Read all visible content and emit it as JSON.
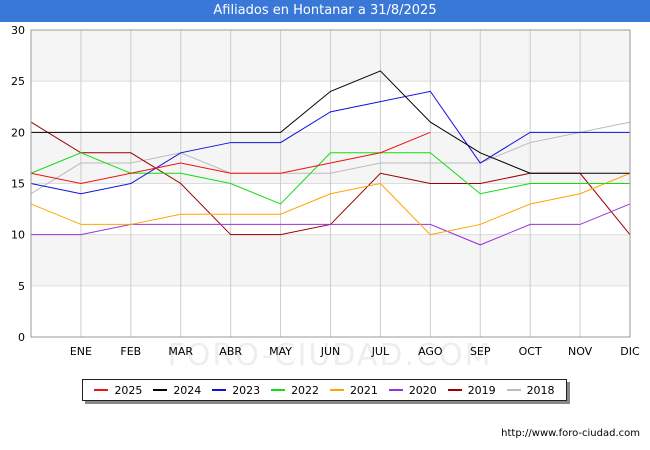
{
  "header": {
    "title": "Afiliados en Hontanar a 31/8/2025"
  },
  "footer": {
    "source": "http://www.foro-ciudad.com"
  },
  "watermark": "FORO-CIUDAD.COM",
  "chart_data": {
    "type": "line",
    "title": "Afiliados en Hontanar a 31/8/2025",
    "xlabel": "",
    "ylabel": "",
    "categories": [
      "",
      "ENE",
      "FEB",
      "MAR",
      "ABR",
      "MAY",
      "JUN",
      "JUL",
      "AGO",
      "SEP",
      "OCT",
      "NOV",
      "DIC"
    ],
    "ylim": [
      0,
      30
    ],
    "yticks": [
      0,
      5,
      10,
      15,
      20,
      25,
      30
    ],
    "grid": true,
    "legend_position": "bottom",
    "series": [
      {
        "name": "2025",
        "color": "#ee1111",
        "values": [
          16,
          15,
          16,
          17,
          16,
          16,
          17,
          18,
          20,
          null,
          null,
          null,
          null
        ]
      },
      {
        "name": "2024",
        "color": "#000000",
        "values": [
          20,
          20,
          20,
          20,
          20,
          20,
          24,
          26,
          21,
          18,
          16,
          16,
          16
        ]
      },
      {
        "name": "2023",
        "color": "#1111dd",
        "values": [
          15,
          14,
          15,
          18,
          19,
          19,
          22,
          23,
          24,
          17,
          20,
          20,
          20
        ]
      },
      {
        "name": "2022",
        "color": "#11dd11",
        "values": [
          16,
          18,
          16,
          16,
          15,
          13,
          18,
          18,
          18,
          14,
          15,
          15,
          15
        ]
      },
      {
        "name": "2021",
        "color": "#ffa500",
        "values": [
          13,
          11,
          11,
          12,
          12,
          12,
          14,
          15,
          10,
          11,
          13,
          14,
          16
        ]
      },
      {
        "name": "2020",
        "color": "#9933dd",
        "values": [
          10,
          10,
          11,
          11,
          11,
          11,
          11,
          11,
          11,
          9,
          11,
          11,
          13
        ]
      },
      {
        "name": "2019",
        "color": "#990000",
        "values": [
          21,
          18,
          18,
          15,
          10,
          10,
          11,
          16,
          15,
          15,
          16,
          16,
          10
        ]
      },
      {
        "name": "2018",
        "color": "#bbbbbb",
        "values": [
          14,
          17,
          17,
          18,
          16,
          16,
          16,
          17,
          17,
          17,
          19,
          20,
          21
        ]
      }
    ]
  }
}
